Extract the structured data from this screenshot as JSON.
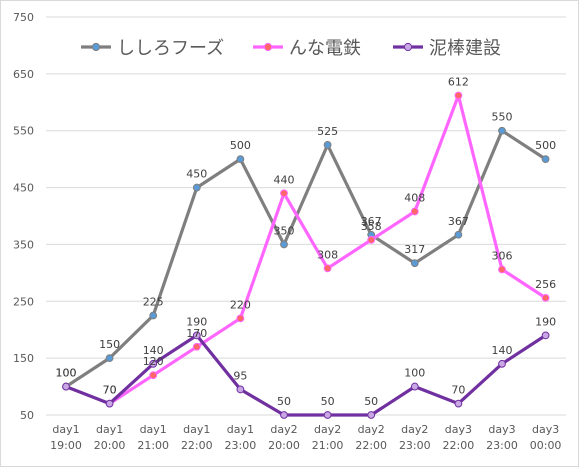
{
  "chart_data": {
    "type": "line",
    "title": "",
    "xlabel": "",
    "ylabel": "",
    "ylim": [
      50,
      750
    ],
    "yticks": [
      50,
      150,
      250,
      350,
      450,
      550,
      650,
      750
    ],
    "grid": "horizontal",
    "legend_position": "top",
    "categories": [
      [
        "day1",
        "19:00"
      ],
      [
        "day1",
        "20:00"
      ],
      [
        "day1",
        "21:00"
      ],
      [
        "day1",
        "22:00"
      ],
      [
        "day1",
        "23:00"
      ],
      [
        "day2",
        "20:00"
      ],
      [
        "day2",
        "21:00"
      ],
      [
        "day2",
        "22:00"
      ],
      [
        "day2",
        "23:00"
      ],
      [
        "day3",
        "22:00"
      ],
      [
        "day3",
        "23:00"
      ],
      [
        "day3",
        "00:00"
      ]
    ],
    "series": [
      {
        "name": "ししろフーズ",
        "line_color": "#7f7f7f",
        "marker_color": "#5b9bd5",
        "values": [
          100,
          150,
          225,
          450,
          500,
          350,
          525,
          367,
          317,
          367,
          550,
          500
        ],
        "labels": [
          "100",
          "150",
          "225",
          "450",
          "500",
          "350",
          "525",
          "367",
          "317",
          "367",
          "550",
          "500"
        ]
      },
      {
        "name": "んな電鉄",
        "line_color": "#ff66ff",
        "marker_color": "#ff6666",
        "values": [
          null,
          70,
          120,
          170,
          220,
          440,
          308,
          358,
          408,
          612,
          306,
          256
        ],
        "labels": [
          "",
          "70",
          "120",
          "170",
          "220",
          "440",
          "308",
          "358",
          "408",
          "612",
          "306",
          "256"
        ]
      },
      {
        "name": "泥棒建設",
        "line_color": "#7030a0",
        "marker_color": "#c9a6e4",
        "values": [
          100,
          70,
          140,
          190,
          95,
          50,
          50,
          50,
          100,
          70,
          140,
          190
        ],
        "labels": [
          "100",
          "70",
          "140",
          "190",
          "95",
          "50",
          "50",
          "50",
          "100",
          "70",
          "140",
          "190"
        ]
      }
    ]
  }
}
